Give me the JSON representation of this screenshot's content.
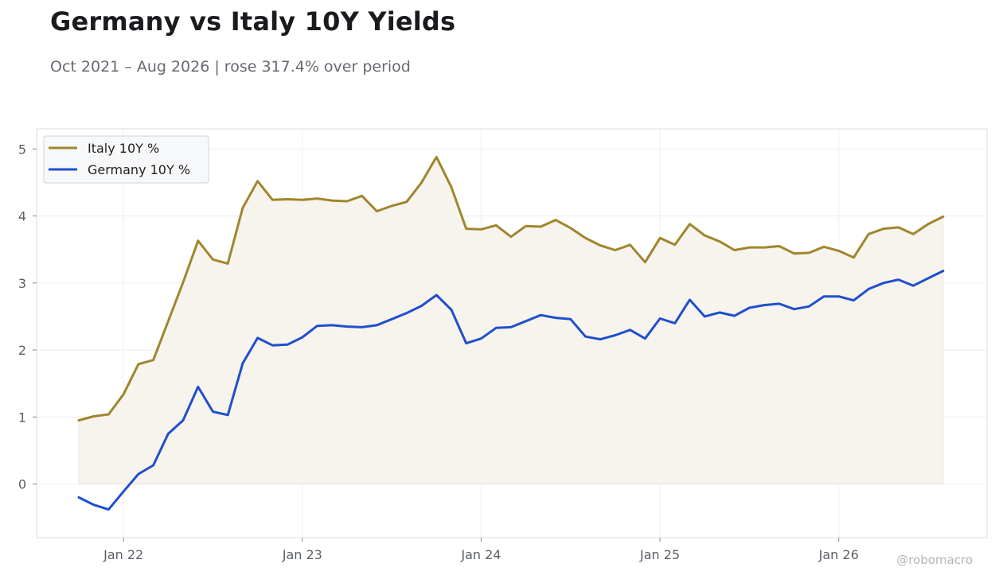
{
  "title": "Germany vs Italy 10Y Yields",
  "subtitle": "Oct 2021 – Aug 2026 | rose 317.4% over period",
  "watermark": "@robomacro",
  "colors": {
    "italy": "#a0862c",
    "germany": "#1f4fcc",
    "fill": "#f7f4ed"
  },
  "chart_data": {
    "type": "line",
    "title": "Germany vs Italy 10Y Yields",
    "subtitle": "Oct 2021 – Aug 2026 | rose 317.4% over period",
    "xlabel": "",
    "ylabel": "",
    "ylim": [
      -0.8,
      5.3
    ],
    "yticks": [
      0,
      1,
      2,
      3,
      4,
      5
    ],
    "xticks": [
      {
        "date": "2022-01",
        "label": "Jan 22"
      },
      {
        "date": "2023-01",
        "label": "Jan 23"
      },
      {
        "date": "2024-01",
        "label": "Jan 24"
      },
      {
        "date": "2025-01",
        "label": "Jan 25"
      },
      {
        "date": "2026-01",
        "label": "Jan 26"
      }
    ],
    "grid": true,
    "legend_position": "top-left",
    "x": [
      "2021-10",
      "2021-11",
      "2021-12",
      "2022-01",
      "2022-02",
      "2022-03",
      "2022-04",
      "2022-05",
      "2022-06",
      "2022-07",
      "2022-08",
      "2022-09",
      "2022-10",
      "2022-11",
      "2022-12",
      "2023-01",
      "2023-02",
      "2023-03",
      "2023-04",
      "2023-05",
      "2023-06",
      "2023-07",
      "2023-08",
      "2023-09",
      "2023-10",
      "2023-11",
      "2023-12",
      "2024-01",
      "2024-02",
      "2024-03",
      "2024-04",
      "2024-05",
      "2024-06",
      "2024-07",
      "2024-08",
      "2024-09",
      "2024-10",
      "2024-11",
      "2024-12",
      "2025-01",
      "2025-02",
      "2025-03",
      "2025-04",
      "2025-05",
      "2025-06",
      "2025-07",
      "2025-08",
      "2025-09",
      "2025-10",
      "2025-11",
      "2025-12",
      "2026-01",
      "2026-02",
      "2026-03",
      "2026-04",
      "2026-05",
      "2026-06",
      "2026-07",
      "2026-08"
    ],
    "series": [
      {
        "name": "Italy 10Y %",
        "filled": true,
        "values": [
          0.95,
          1.01,
          1.04,
          1.34,
          1.79,
          1.85,
          2.43,
          3.01,
          3.63,
          3.35,
          3.29,
          4.12,
          4.52,
          4.24,
          4.25,
          4.24,
          4.26,
          4.23,
          4.22,
          4.3,
          4.07,
          4.15,
          4.21,
          4.5,
          4.88,
          4.43,
          3.81,
          3.8,
          3.86,
          3.69,
          3.85,
          3.84,
          3.94,
          3.82,
          3.67,
          3.56,
          3.49,
          3.57,
          3.31,
          3.67,
          3.57,
          3.88,
          3.71,
          3.62,
          3.49,
          3.53,
          3.53,
          3.55,
          3.44,
          3.45,
          3.54,
          3.48,
          3.38,
          3.73,
          3.81,
          3.83,
          3.73,
          3.88,
          3.99
        ]
      },
      {
        "name": "Germany 10Y %",
        "filled": false,
        "values": [
          -0.2,
          -0.31,
          -0.38,
          -0.11,
          0.15,
          0.28,
          0.75,
          0.95,
          1.45,
          1.08,
          1.03,
          1.8,
          2.18,
          2.07,
          2.08,
          2.19,
          2.36,
          2.37,
          2.35,
          2.34,
          2.37,
          2.46,
          2.55,
          2.66,
          2.82,
          2.6,
          2.1,
          2.17,
          2.33,
          2.34,
          2.43,
          2.52,
          2.48,
          2.46,
          2.2,
          2.16,
          2.22,
          2.3,
          2.17,
          2.47,
          2.4,
          2.75,
          2.5,
          2.56,
          2.51,
          2.63,
          2.67,
          2.69,
          2.61,
          2.65,
          2.8,
          2.8,
          2.74,
          2.91,
          3.0,
          3.05,
          2.96,
          3.07,
          3.18
        ]
      }
    ]
  }
}
